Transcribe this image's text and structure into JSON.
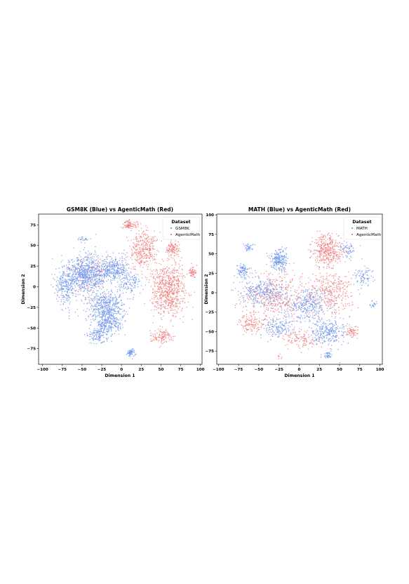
{
  "chart_data": [
    {
      "type": "scatter",
      "title": "GSM8K (Blue) vs AgenticMath (Red)",
      "xlabel": "Dimension 1",
      "ylabel": "Dimension 2",
      "xlim": [
        -105,
        102
      ],
      "ylim": [
        -94,
        88
      ],
      "xticks": [
        "−100",
        "−75",
        "−50",
        "−25",
        "0",
        "25",
        "50",
        "75",
        "100"
      ],
      "xtick_values": [
        -100,
        -75,
        -50,
        -25,
        0,
        25,
        50,
        75,
        100
      ],
      "yticks": [
        "75",
        "50",
        "25",
        "0",
        "−25",
        "−50",
        "−75"
      ],
      "ytick_values": [
        75,
        50,
        25,
        0,
        -25,
        -50,
        -75
      ],
      "grid": false,
      "legend": {
        "title": "Dataset",
        "placement": "top-right"
      },
      "series": [
        {
          "name": "GSM8K",
          "color": "#6f96ec",
          "clusters": [
            {
              "center": [
                -45,
                15
              ],
              "spread": [
                25,
                20
              ],
              "count": 750
            },
            {
              "center": [
                -20,
                -25
              ],
              "spread": [
                22,
                20
              ],
              "count": 500
            },
            {
              "center": [
                -70,
                0
              ],
              "spread": [
                12,
                20
              ],
              "count": 220
            },
            {
              "center": [
                -10,
                22
              ],
              "spread": [
                18,
                14
              ],
              "count": 300
            },
            {
              "center": [
                -30,
                -58
              ],
              "spread": [
                12,
                10
              ],
              "count": 140
            },
            {
              "center": [
                12,
                -80
              ],
              "spread": [
                5,
                4
              ],
              "count": 60
            },
            {
              "center": [
                10,
                5
              ],
              "spread": [
                12,
                12
              ],
              "count": 120
            },
            {
              "center": [
                -50,
                58
              ],
              "spread": [
                8,
                4
              ],
              "count": 25
            },
            {
              "center": [
                -15,
                -45
              ],
              "spread": [
                15,
                10
              ],
              "count": 180
            }
          ]
        },
        {
          "name": "AgenticMath",
          "color": "#ef7b7b",
          "clusters": [
            {
              "center": [
                60,
                -5
              ],
              "spread": [
                20,
                28
              ],
              "count": 650
            },
            {
              "center": [
                28,
                45
              ],
              "spread": [
                15,
                22
              ],
              "count": 320
            },
            {
              "center": [
                10,
                75
              ],
              "spread": [
                8,
                5
              ],
              "count": 90
            },
            {
              "center": [
                90,
                18
              ],
              "spread": [
                5,
                6
              ],
              "count": 60
            },
            {
              "center": [
                50,
                -60
              ],
              "spread": [
                12,
                8
              ],
              "count": 110
            },
            {
              "center": [
                65,
                45
              ],
              "spread": [
                8,
                8
              ],
              "count": 110
            },
            {
              "center": [
                -35,
                10
              ],
              "spread": [
                40,
                30
              ],
              "count": 120
            }
          ]
        }
      ]
    },
    {
      "type": "scatter",
      "title": "MATH (Blue) vs AgenticMath (Red)",
      "xlabel": "Dimension 1",
      "ylabel": "Dimension 2",
      "xlim": [
        -102,
        103
      ],
      "ylim": [
        -92,
        101
      ],
      "xticks": [
        "−100",
        "−75",
        "−50",
        "−25",
        "0",
        "25",
        "50",
        "75",
        "100"
      ],
      "xtick_values": [
        -100,
        -75,
        -50,
        -25,
        0,
        25,
        50,
        75,
        100
      ],
      "yticks": [
        "100",
        "75",
        "50",
        "25",
        "0",
        "−25",
        "−50",
        "−75"
      ],
      "ytick_values": [
        100,
        75,
        50,
        25,
        0,
        -25,
        -50,
        -75
      ],
      "grid": false,
      "legend": {
        "title": "Dataset",
        "placement": "top-right"
      },
      "series": [
        {
          "name": "MATH",
          "color": "#6f96ec",
          "clusters": [
            {
              "center": [
                -25,
                42
              ],
              "spread": [
                10,
                12
              ],
              "count": 220
            },
            {
              "center": [
                -70,
                28
              ],
              "spread": [
                8,
                8
              ],
              "count": 90
            },
            {
              "center": [
                -45,
                0
              ],
              "spread": [
                25,
                18
              ],
              "count": 300
            },
            {
              "center": [
                10,
                -15
              ],
              "spread": [
                25,
                18
              ],
              "count": 320
            },
            {
              "center": [
                35,
                -50
              ],
              "spread": [
                20,
                15
              ],
              "count": 280
            },
            {
              "center": [
                -25,
                -45
              ],
              "spread": [
                15,
                12
              ],
              "count": 150
            },
            {
              "center": [
                80,
                20
              ],
              "spread": [
                10,
                12
              ],
              "count": 80
            },
            {
              "center": [
                60,
                55
              ],
              "spread": [
                10,
                10
              ],
              "count": 60
            },
            {
              "center": [
                -62,
                58
              ],
              "spread": [
                6,
                4
              ],
              "count": 40
            },
            {
              "center": [
                35,
                -80
              ],
              "spread": [
                6,
                4
              ],
              "count": 40
            },
            {
              "center": [
                92,
                -15
              ],
              "spread": [
                4,
                4
              ],
              "count": 20
            }
          ]
        },
        {
          "name": "AgenticMath",
          "color": "#ef7b7b",
          "clusters": [
            {
              "center": [
                35,
                55
              ],
              "spread": [
                18,
                20
              ],
              "count": 380
            },
            {
              "center": [
                -30,
                -5
              ],
              "spread": [
                35,
                28
              ],
              "count": 400
            },
            {
              "center": [
                40,
                0
              ],
              "spread": [
                25,
                25
              ],
              "count": 320
            },
            {
              "center": [
                -60,
                -40
              ],
              "spread": [
                14,
                12
              ],
              "count": 120
            },
            {
              "center": [
                0,
                -60
              ],
              "spread": [
                22,
                10
              ],
              "count": 120
            },
            {
              "center": [
                65,
                -50
              ],
              "spread": [
                8,
                6
              ],
              "count": 60
            },
            {
              "center": [
                -25,
                -82
              ],
              "spread": [
                3,
                3
              ],
              "count": 8
            }
          ]
        }
      ]
    }
  ]
}
